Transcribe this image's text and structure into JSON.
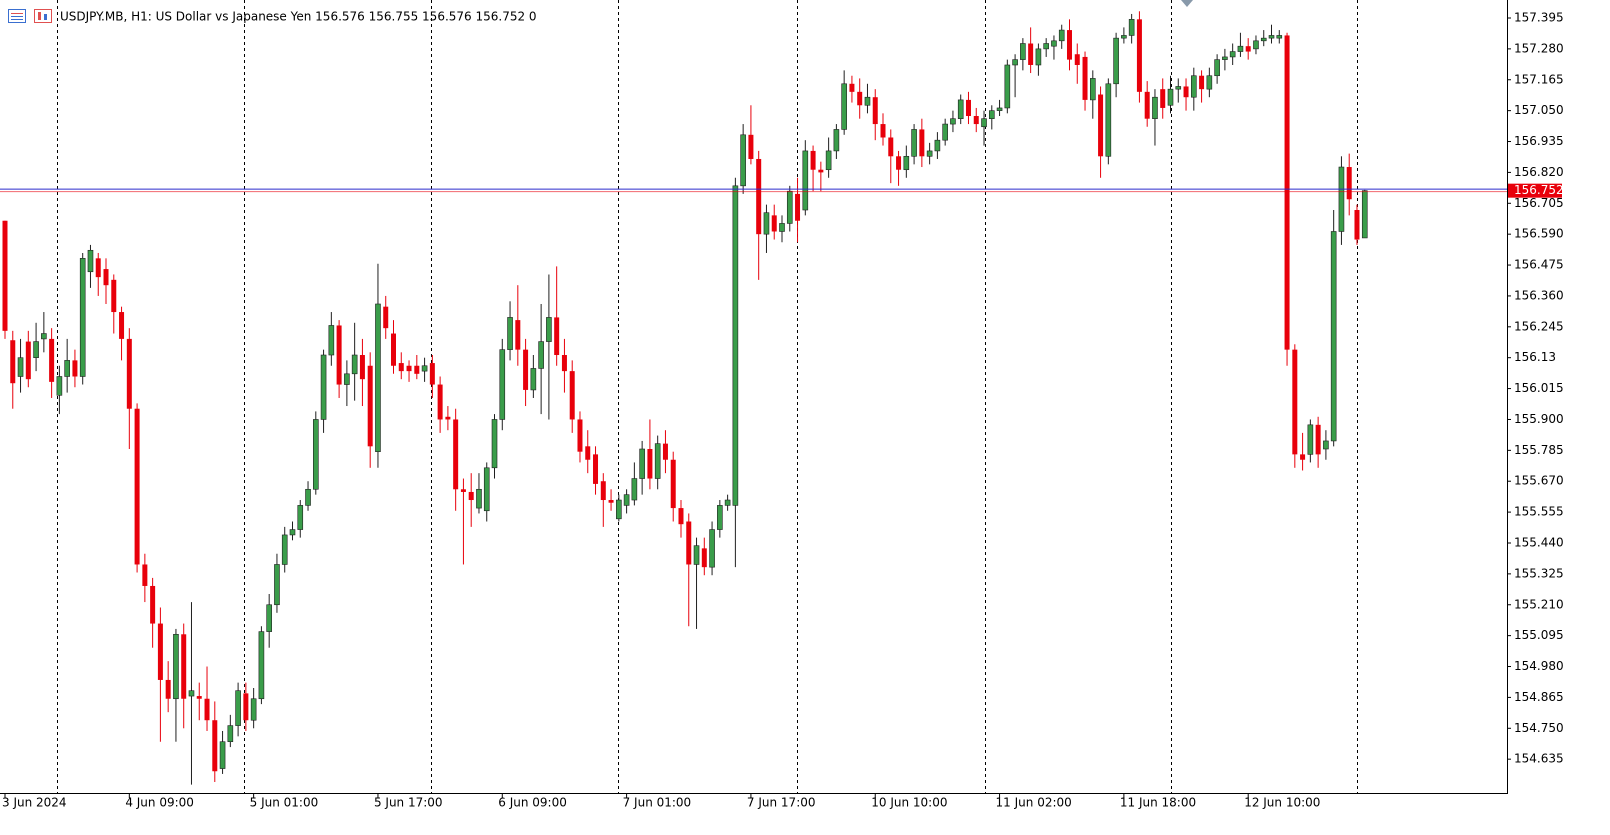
{
  "chart_data": {
    "type": "candlestick",
    "title": "USDJPY.MB, H1:  US Dollar vs Japanese Yen  156.576 156.755 156.576 156.752  0",
    "categories": [
      "3 Jun 2024",
      null,
      null,
      null,
      null,
      null,
      null,
      null,
      null,
      null,
      null,
      null,
      null,
      null,
      null,
      null,
      "4 Jun 09:00",
      null,
      null,
      null,
      null,
      null,
      null,
      null,
      null,
      null,
      null,
      null,
      null,
      null,
      null,
      null,
      "5 Jun 01:00",
      null,
      null,
      null,
      null,
      null,
      null,
      null,
      null,
      null,
      null,
      null,
      null,
      null,
      null,
      null,
      "5 Jun 17:00",
      null,
      null,
      null,
      null,
      null,
      null,
      null,
      null,
      null,
      null,
      null,
      null,
      null,
      null,
      null,
      "6 Jun 09:00",
      null,
      null,
      null,
      null,
      null,
      null,
      null,
      null,
      null,
      null,
      null,
      null,
      null,
      null,
      null,
      "7 Jun 01:00",
      null,
      null,
      null,
      null,
      null,
      null,
      null,
      null,
      null,
      null,
      null,
      null,
      null,
      null,
      null,
      "7 Jun 17:00",
      null,
      null,
      null,
      null,
      null,
      null,
      null,
      null,
      null,
      null,
      null,
      null,
      null,
      null,
      null,
      "10 Jun 10:00",
      null,
      null,
      null,
      null,
      null,
      null,
      null,
      null,
      null,
      null,
      null,
      null,
      null,
      null,
      null,
      "11 Jun 02:00",
      null,
      null,
      null,
      null,
      null,
      null,
      null,
      null,
      null,
      null,
      null,
      null,
      null,
      null,
      null,
      "11 Jun 18:00",
      null,
      null,
      null,
      null,
      null,
      null,
      null,
      null,
      null,
      null,
      null,
      null,
      null,
      null,
      null,
      "12 Jun 10:00",
      null,
      null,
      null,
      null,
      null,
      null,
      null,
      null,
      null,
      null,
      null,
      null,
      null,
      null,
      null
    ],
    "open": [
      156.64,
      156.195,
      156.06,
      156.19,
      156.13,
      156.2,
      156.2,
      155.99,
      156.06,
      156.12,
      156.06,
      156.45,
      156.5,
      156.46,
      156.42,
      156.3,
      156.2,
      155.94,
      155.36,
      155.28,
      155.14,
      154.93,
      154.86,
      155.1,
      154.87,
      154.87,
      154.86,
      154.78,
      154.6,
      154.7,
      154.76,
      154.88,
      154.78,
      154.86,
      155.11,
      155.21,
      155.36,
      155.47,
      155.49,
      155.58,
      155.64,
      155.9,
      156.14,
      156.25,
      156.03,
      156.07,
      156.14,
      156.1,
      155.78,
      156.32,
      156.22,
      156.11,
      156.1,
      156.1,
      156.08,
      156.11,
      156.03,
      155.91,
      155.9,
      155.64,
      155.63,
      155.57,
      155.56,
      155.72,
      155.9,
      156.16,
      156.27,
      156.16,
      156.01,
      156.09,
      156.19,
      156.28,
      156.14,
      156.08,
      155.9,
      155.8,
      155.77,
      155.67,
      155.6,
      155.53,
      155.58,
      155.6,
      155.68,
      155.79,
      155.68,
      155.81,
      155.75,
      155.57,
      155.52,
      155.36,
      155.42,
      155.35,
      155.49,
      155.58,
      155.58,
      156.77,
      156.96,
      156.87,
      156.59,
      156.66,
      156.6,
      156.63,
      156.74,
      156.68,
      156.9,
      156.83,
      156.83,
      156.9,
      156.98,
      157.15,
      157.12,
      157.07,
      157.1,
      157.0,
      156.95,
      156.88,
      156.83,
      156.88,
      156.98,
      156.88,
      156.9,
      156.94,
      157.0,
      157.02,
      157.09,
      157.03,
      156.99,
      157.02,
      157.05,
      157.06,
      157.22,
      157.24,
      157.3,
      157.22,
      157.28,
      157.29,
      157.31,
      157.35,
      157.26,
      157.25,
      157.09,
      157.11,
      156.88,
      157.15,
      157.32,
      157.33,
      157.39,
      157.12,
      157.02,
      157.13,
      157.07,
      157.13,
      157.14,
      157.1,
      157.18,
      157.13,
      157.18,
      157.24,
      157.25,
      157.27,
      157.29,
      157.28,
      157.31,
      157.32,
      157.32,
      157.33,
      156.16,
      155.77,
      155.77,
      155.88,
      155.79,
      155.82,
      156.6,
      156.84,
      156.68,
      156.576
    ],
    "high": [
      156.64,
      156.23,
      156.2,
      156.23,
      156.26,
      156.3,
      156.24,
      156.1,
      156.2,
      156.16,
      156.52,
      156.55,
      156.52,
      156.5,
      156.44,
      156.32,
      156.24,
      155.96,
      155.4,
      155.31,
      155.2,
      155.0,
      155.12,
      155.14,
      155.22,
      154.92,
      154.98,
      154.85,
      154.74,
      154.8,
      154.92,
      154.92,
      154.9,
      155.13,
      155.25,
      155.4,
      155.5,
      155.52,
      155.6,
      155.67,
      155.93,
      156.16,
      156.3,
      156.27,
      156.12,
      156.26,
      156.2,
      156.15,
      156.48,
      156.36,
      156.27,
      156.15,
      156.12,
      156.14,
      156.13,
      156.14,
      156.06,
      155.95,
      155.94,
      155.68,
      155.7,
      155.7,
      155.74,
      155.92,
      156.2,
      156.34,
      156.4,
      156.2,
      156.14,
      156.33,
      156.44,
      156.47,
      156.2,
      156.12,
      155.93,
      155.86,
      155.8,
      155.7,
      155.64,
      155.62,
      155.64,
      155.74,
      155.82,
      155.9,
      155.84,
      155.86,
      155.78,
      155.6,
      155.55,
      155.46,
      155.46,
      155.52,
      155.6,
      155.62,
      156.8,
      157.0,
      157.07,
      156.9,
      156.7,
      156.7,
      156.66,
      156.77,
      156.8,
      156.94,
      156.92,
      156.86,
      156.95,
      157.0,
      157.2,
      157.18,
      157.17,
      157.15,
      157.13,
      157.04,
      156.98,
      156.9,
      156.92,
      157.0,
      157.02,
      156.93,
      156.97,
      157.02,
      157.05,
      157.11,
      157.12,
      157.06,
      157.05,
      157.07,
      157.09,
      157.24,
      157.26,
      157.32,
      157.36,
      157.3,
      157.32,
      157.33,
      157.37,
      157.39,
      157.3,
      157.27,
      157.2,
      157.14,
      157.17,
      157.34,
      157.36,
      157.41,
      157.42,
      157.16,
      157.13,
      157.17,
      157.18,
      157.17,
      157.17,
      157.21,
      157.2,
      157.21,
      157.26,
      157.28,
      157.3,
      157.34,
      157.32,
      157.33,
      157.35,
      157.37,
      157.35,
      157.34,
      156.18,
      155.85,
      155.9,
      155.91,
      155.86,
      156.68,
      156.88,
      156.89,
      156.7,
      156.755
    ],
    "low": [
      156.2,
      155.94,
      156.0,
      156.02,
      156.08,
      156.15,
      155.98,
      155.92,
      156.0,
      156.02,
      156.03,
      156.39,
      156.36,
      156.33,
      156.22,
      156.12,
      155.79,
      155.33,
      155.22,
      155.05,
      154.7,
      154.81,
      154.7,
      154.75,
      154.54,
      154.78,
      154.74,
      154.55,
      154.58,
      154.68,
      154.72,
      154.74,
      154.75,
      154.84,
      155.05,
      155.18,
      155.33,
      155.45,
      155.46,
      155.56,
      155.62,
      155.85,
      156.1,
      155.98,
      155.95,
      155.97,
      155.95,
      155.72,
      155.72,
      156.2,
      156.07,
      156.05,
      156.04,
      156.05,
      156.04,
      155.98,
      155.85,
      155.86,
      155.56,
      155.36,
      155.5,
      155.55,
      155.52,
      155.68,
      155.86,
      156.12,
      156.1,
      155.95,
      155.98,
      155.92,
      155.9,
      156.1,
      156.0,
      155.85,
      155.74,
      155.7,
      155.62,
      155.5,
      155.56,
      155.52,
      155.55,
      155.58,
      155.62,
      155.64,
      155.64,
      155.7,
      155.52,
      155.46,
      155.13,
      155.12,
      155.32,
      155.32,
      155.46,
      155.56,
      155.35,
      156.74,
      156.85,
      156.42,
      156.52,
      156.57,
      156.56,
      156.6,
      156.56,
      156.66,
      156.75,
      156.75,
      156.8,
      156.87,
      156.96,
      157.08,
      157.02,
      157.04,
      156.94,
      156.92,
      156.78,
      156.77,
      156.8,
      156.85,
      156.84,
      156.85,
      156.87,
      156.92,
      156.97,
      157.0,
      157.0,
      156.97,
      156.92,
      156.98,
      157.03,
      157.04,
      157.1,
      157.2,
      157.19,
      157.18,
      157.25,
      157.24,
      157.28,
      157.2,
      157.15,
      157.05,
      157.02,
      156.8,
      156.85,
      157.1,
      157.3,
      157.3,
      157.08,
      156.99,
      156.92,
      157.02,
      157.04,
      157.08,
      157.05,
      157.05,
      157.08,
      157.1,
      157.15,
      157.2,
      157.22,
      157.25,
      157.24,
      157.26,
      157.29,
      157.3,
      157.3,
      156.1,
      155.72,
      155.71,
      155.74,
      155.72,
      155.75,
      155.8,
      156.55,
      156.66,
      156.55,
      156.576
    ],
    "close": [
      156.23,
      156.035,
      156.13,
      156.05,
      156.19,
      156.22,
      156.04,
      156.06,
      156.12,
      156.06,
      156.5,
      156.53,
      156.43,
      156.4,
      156.3,
      156.2,
      155.94,
      155.36,
      155.28,
      155.14,
      154.93,
      154.86,
      155.1,
      154.86,
      154.89,
      154.86,
      154.78,
      154.59,
      154.7,
      154.76,
      154.89,
      154.78,
      154.86,
      155.11,
      155.21,
      155.36,
      155.47,
      155.49,
      155.58,
      155.64,
      155.9,
      156.14,
      156.25,
      156.03,
      156.07,
      156.14,
      156.05,
      155.8,
      156.33,
      156.24,
      156.1,
      156.08,
      156.08,
      156.07,
      156.1,
      156.03,
      155.9,
      155.9,
      155.64,
      155.63,
      155.6,
      155.64,
      155.72,
      155.9,
      156.16,
      156.28,
      156.16,
      156.01,
      156.09,
      156.19,
      156.28,
      156.14,
      156.08,
      155.9,
      155.78,
      155.75,
      155.66,
      155.6,
      155.59,
      155.6,
      155.62,
      155.68,
      155.79,
      155.68,
      155.81,
      155.75,
      155.57,
      155.51,
      155.36,
      155.43,
      155.35,
      155.49,
      155.58,
      155.6,
      156.77,
      156.96,
      156.87,
      156.59,
      156.67,
      156.6,
      156.63,
      156.75,
      156.64,
      156.9,
      156.83,
      156.82,
      156.9,
      156.98,
      157.15,
      157.12,
      157.07,
      157.1,
      157.0,
      156.95,
      156.88,
      156.83,
      156.88,
      156.98,
      156.88,
      156.9,
      156.94,
      157.0,
      157.02,
      157.09,
      157.03,
      157.0,
      157.02,
      157.05,
      157.06,
      157.22,
      157.24,
      157.3,
      157.22,
      157.28,
      157.3,
      157.31,
      157.35,
      157.24,
      157.22,
      157.09,
      157.17,
      156.88,
      157.15,
      157.32,
      157.33,
      157.39,
      157.12,
      157.02,
      157.1,
      157.06,
      157.13,
      157.14,
      157.1,
      157.18,
      157.13,
      157.18,
      157.24,
      157.25,
      157.27,
      157.29,
      157.27,
      157.31,
      157.32,
      157.33,
      157.33,
      156.16,
      155.77,
      155.75,
      155.88,
      155.77,
      155.82,
      156.6,
      156.84,
      156.72,
      156.57,
      156.752
    ],
    "up_color": "#3a9d4a",
    "down_color": "#e8000b",
    "current_price": 156.752,
    "current_price_color": "#e8000b",
    "price_line_color": "#2b2bcc",
    "ylim": [
      154.509,
      157.462
    ],
    "yticks": [
      157.395,
      {
        "value": 157.28,
        "label": "157.280"
      },
      157.165,
      {
        "value": 157.05,
        "label": "157.050"
      },
      156.935,
      {
        "value": 156.82,
        "label": "156.820"
      },
      156.705,
      {
        "value": 156.59,
        "label": "156.590"
      },
      156.475,
      {
        "value": 156.36,
        "label": "156.360"
      },
      156.245,
      156.13,
      156.015,
      {
        "value": 155.9,
        "label": "155.900"
      },
      155.785,
      {
        "value": 155.67,
        "label": "155.670"
      },
      155.555,
      {
        "value": 155.44,
        "label": "155.440"
      },
      155.325,
      {
        "value": 155.21,
        "label": "155.210"
      },
      155.095,
      {
        "value": 154.98,
        "label": "154.980"
      },
      154.865,
      {
        "value": 154.75,
        "label": "154.750"
      },
      154.635
    ],
    "grid": false
  }
}
